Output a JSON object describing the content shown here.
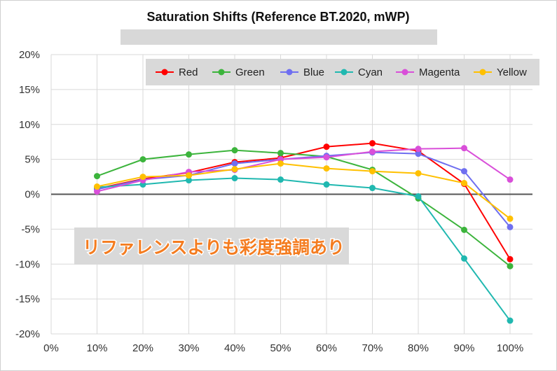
{
  "chart_data": {
    "type": "line",
    "title": "Saturation Shifts (Reference BT.2020, mWP)",
    "annotation": "リファレンスよりも彩度強調あり",
    "xlabel": "",
    "ylabel": "",
    "x": [
      10,
      20,
      30,
      40,
      50,
      60,
      70,
      80,
      90,
      100
    ],
    "x_ticks": [
      "0%",
      "10%",
      "20%",
      "30%",
      "40%",
      "50%",
      "60%",
      "70%",
      "80%",
      "90%",
      "100%"
    ],
    "y_ticks": [
      "20%",
      "15%",
      "10%",
      "5%",
      "0%",
      "-5%",
      "-10%",
      "-15%",
      "-20%"
    ],
    "xlim": [
      0,
      100
    ],
    "ylim": [
      -20,
      20
    ],
    "grid": true,
    "legend": "top-right",
    "series": [
      {
        "name": "Red",
        "color": "#ff0000",
        "values": [
          0.8,
          2.2,
          3.1,
          4.6,
          5.2,
          6.8,
          7.3,
          6.2,
          1.5,
          -9.3
        ]
      },
      {
        "name": "Green",
        "color": "#3cb43c",
        "values": [
          2.6,
          5.0,
          5.7,
          6.3,
          5.9,
          5.4,
          3.5,
          -0.6,
          -5.1,
          -10.3
        ]
      },
      {
        "name": "Blue",
        "color": "#6f6ff0",
        "values": [
          0.7,
          2.1,
          2.7,
          4.4,
          5.0,
          5.5,
          6.0,
          5.8,
          3.3,
          -4.7
        ]
      },
      {
        "name": "Cyan",
        "color": "#20b8b0",
        "values": [
          1.0,
          1.4,
          2.0,
          2.3,
          2.1,
          1.4,
          0.9,
          -0.3,
          -9.2,
          -18.1
        ]
      },
      {
        "name": "Magenta",
        "color": "#d94fd9",
        "values": [
          0.4,
          2.0,
          3.2,
          3.5,
          5.0,
          5.3,
          6.1,
          6.5,
          6.6,
          2.1
        ]
      },
      {
        "name": "Yellow",
        "color": "#ffc000",
        "values": [
          1.1,
          2.5,
          2.7,
          3.6,
          4.4,
          3.7,
          3.3,
          3.0,
          1.6,
          -3.5
        ]
      }
    ]
  }
}
